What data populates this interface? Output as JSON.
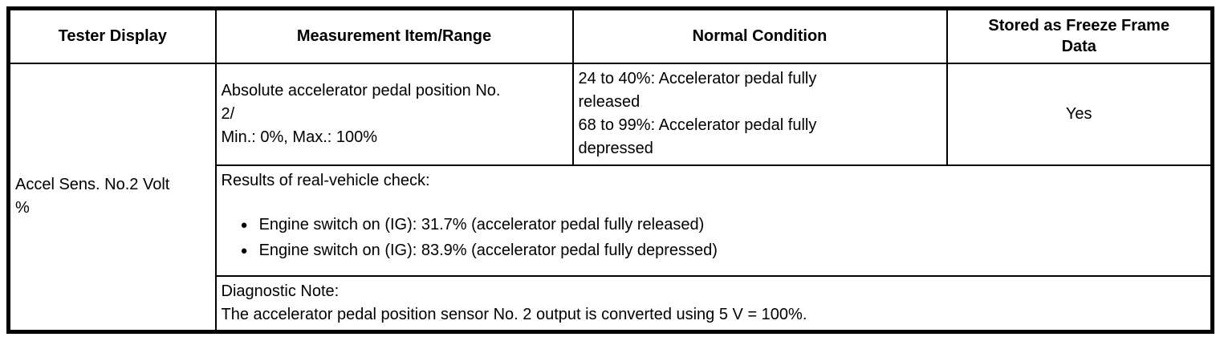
{
  "colors": {
    "border": "#000000",
    "text": "#000000",
    "background": "#ffffff"
  },
  "table": {
    "headers": {
      "tester_display": "Tester Display",
      "measurement": "Measurement Item/Range",
      "normal_condition": "Normal Condition",
      "freeze_frame": "Stored as Freeze Frame Data"
    },
    "body": {
      "tester_display": "Accel Sens. No.2 Volt %",
      "measurement_item": "Absolute accelerator pedal position No. 2/",
      "measurement_range": "Min.: 0%, Max.: 100%",
      "normal_condition_released": "24 to 40%: Accelerator pedal fully released",
      "normal_condition_depressed": "68 to 99%: Accelerator pedal fully depressed",
      "freeze_frame": "Yes",
      "results_title": "Results of real-vehicle check:",
      "results_bullets": [
        "Engine switch on (IG): 31.7% (accelerator pedal fully released)",
        "Engine switch on (IG): 83.9% (accelerator pedal fully depressed)"
      ],
      "bullet_glyph": "●",
      "diagnostic_title": "Diagnostic Note:",
      "diagnostic_body": "The accelerator pedal position sensor No. 2 output is converted using 5 V = 100%."
    }
  }
}
